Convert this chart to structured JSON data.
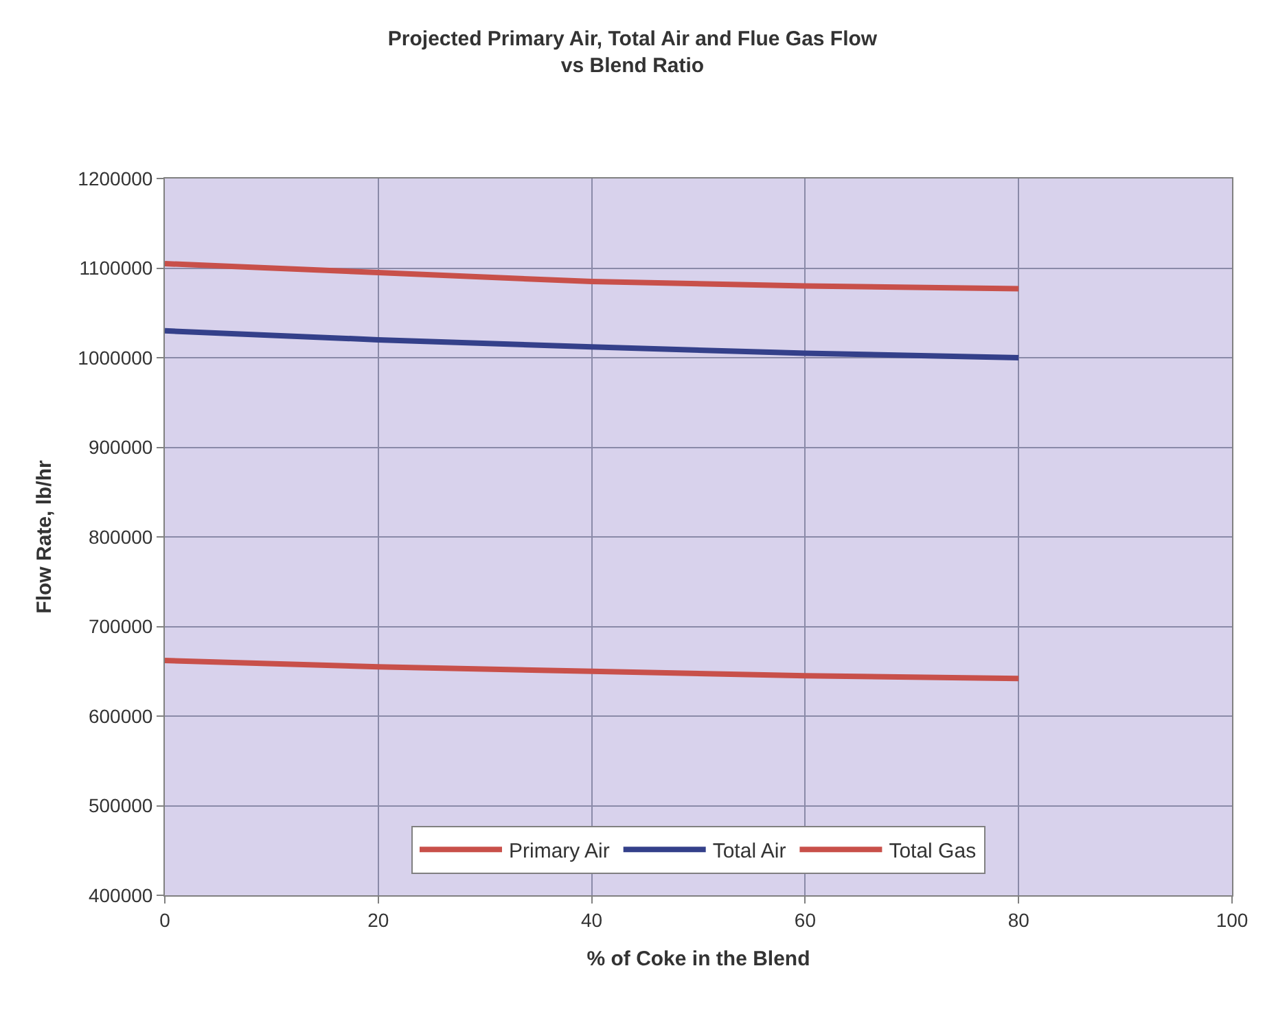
{
  "chart_data": {
    "type": "line",
    "title": "Projected Primary Air, Total Air and Flue Gas Flow\nvs Blend Ratio",
    "xlabel": "% of Coke in the Blend",
    "ylabel": "Flow Rate, lb/hr",
    "x": [
      0,
      20,
      40,
      60,
      80
    ],
    "series": [
      {
        "name": "Primary Air",
        "color": "#c8504a",
        "values": [
          662000,
          655000,
          650000,
          645000,
          642000
        ]
      },
      {
        "name": "Total Air",
        "color": "#34408a",
        "values": [
          1030000,
          1020000,
          1012000,
          1005000,
          1000000
        ]
      },
      {
        "name": "Total Gas",
        "color": "#c8504a",
        "values": [
          1105000,
          1095000,
          1085000,
          1080000,
          1077000
        ]
      }
    ],
    "xlim": [
      0,
      100
    ],
    "xticks": [
      0,
      20,
      40,
      60,
      80,
      100
    ],
    "ylim": [
      400000,
      1200000
    ],
    "yticks": [
      400000,
      500000,
      600000,
      700000,
      800000,
      900000,
      1000000,
      1100000,
      1200000
    ],
    "grid": true,
    "legend": "bottom",
    "marker": "none",
    "line_style": "solid"
  }
}
